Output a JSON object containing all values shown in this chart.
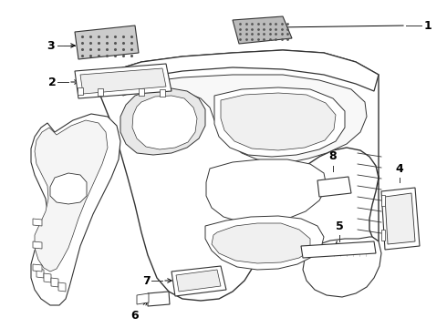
{
  "bg_color": "#ffffff",
  "line_color": "#333333",
  "label_fontsize": 9,
  "fig_width": 4.9,
  "fig_height": 3.6,
  "dpi": 100
}
